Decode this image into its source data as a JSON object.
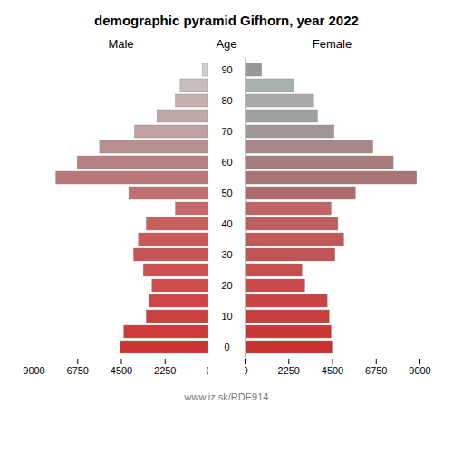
{
  "chart_data": {
    "type": "pyramid",
    "orientation": "horizontal",
    "title": "demographic pyramid Gifhorn, year 2022",
    "caption": "www.iz.sk/RDE914",
    "ylabel": "Age",
    "categories": [
      "0",
      null,
      "10",
      null,
      "20",
      null,
      "30",
      null,
      "40",
      null,
      "50",
      null,
      "60",
      null,
      "70",
      null,
      "80",
      null,
      "90"
    ],
    "series": [
      {
        "name": "Male",
        "values": [
          4550,
          4350,
          3200,
          3050,
          2900,
          3350,
          3850,
          3600,
          3200,
          1700,
          4100,
          7850,
          6750,
          5600,
          3800,
          2650,
          1700,
          1450,
          320
        ],
        "colors": [
          "#cd3333",
          "#cd3a3a",
          "#cd4040",
          "#cd4646",
          "#cd4c4c",
          "#cd5050",
          "#c85555",
          "#c85a5a",
          "#c86060",
          "#c86868",
          "#bf7070",
          "#b87878",
          "#b88080",
          "#b89090",
          "#c0a0a0",
          "#c0a8a8",
          "#c8b0b0",
          "#c8bcbc",
          "#d0d0d0"
        ]
      },
      {
        "name": "Female",
        "values": [
          4500,
          4450,
          4350,
          4250,
          3100,
          2950,
          4650,
          5100,
          4800,
          4450,
          5700,
          8850,
          7650,
          6600,
          4600,
          3750,
          3550,
          2550,
          870
        ],
        "colors": [
          "#c83030",
          "#c83838",
          "#c83e3e",
          "#c84444",
          "#c84a4a",
          "#c84e4e",
          "#c05454",
          "#c05858",
          "#be5e5e",
          "#be6666",
          "#b06c6c",
          "#a87474",
          "#a87c7c",
          "#a88888",
          "#a09696",
          "#a0a0a0",
          "#a8aaa8",
          "#a8b0b0",
          "#989898"
        ]
      }
    ],
    "xlim": [
      0,
      9000
    ],
    "xticks": [
      0,
      2250,
      4500,
      6750,
      9000
    ]
  }
}
